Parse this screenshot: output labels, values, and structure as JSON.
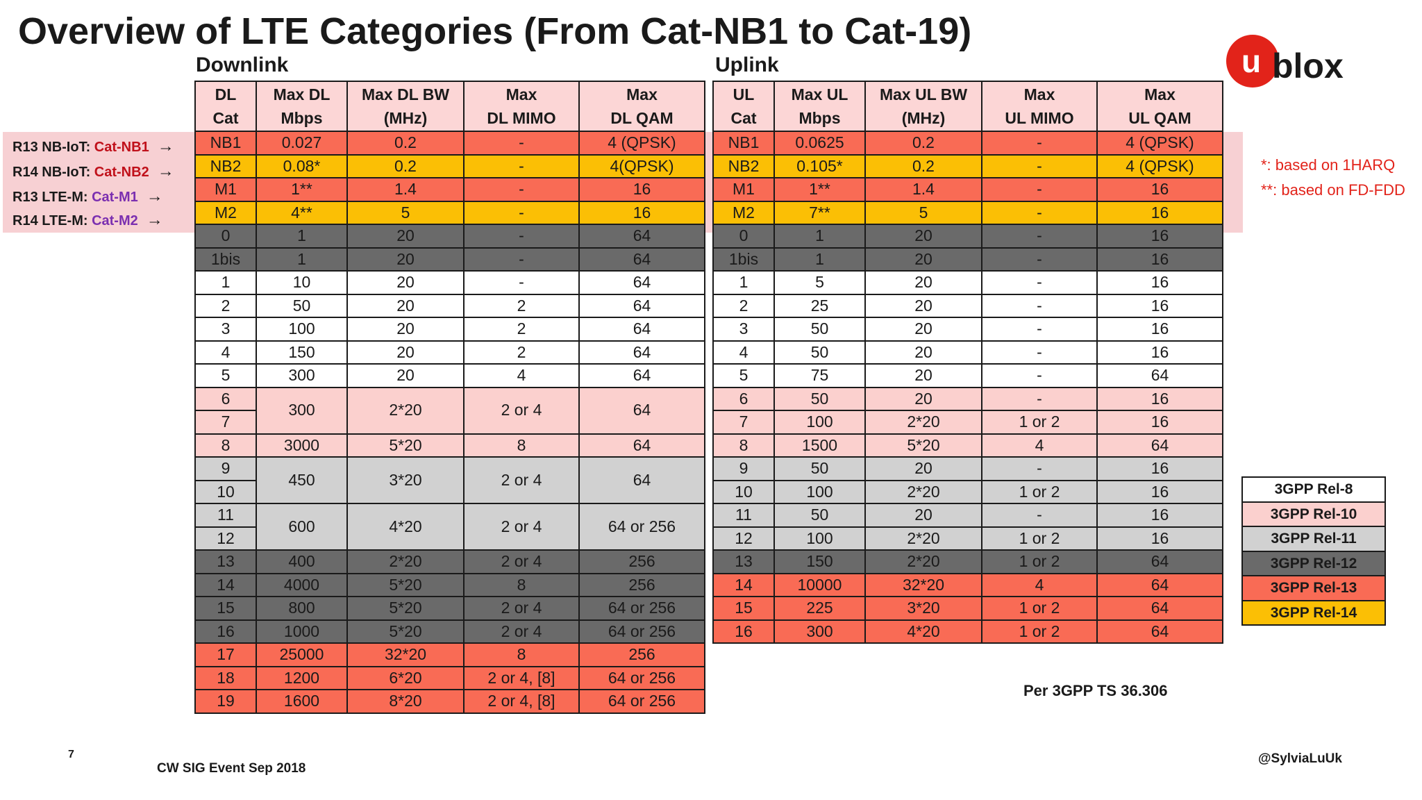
{
  "title": "Overview of LTE Categories (From Cat-NB1 to Cat-19)",
  "logo_text": "ublox",
  "colors": {
    "rel8": "#ffffff",
    "rel10": "#fbd0ce",
    "rel11": "#d1d1d1",
    "rel12": "#6a6a6a",
    "rel13": "#f96b55",
    "rel14": "#fbbf05",
    "logo_red": "#e2231a"
  },
  "downlink": {
    "heading": "Downlink",
    "headers": [
      [
        "DL",
        "Cat"
      ],
      [
        "Max DL",
        "Mbps"
      ],
      [
        "Max DL BW",
        "(MHz)"
      ],
      [
        "Max",
        "DL MIMO"
      ],
      [
        "Max",
        "DL QAM"
      ]
    ],
    "rows": {
      "nb1": [
        "NB1",
        "0.027",
        "0.2",
        "-",
        "4 (QPSK)"
      ],
      "nb2": [
        "NB2",
        "0.08*",
        "0.2",
        "-",
        "4(QPSK)"
      ],
      "m1": [
        "M1",
        "1**",
        "1.4",
        "-",
        "16"
      ],
      "m2": [
        "M2",
        "4**",
        "5",
        "-",
        "16"
      ],
      "c0": [
        "0",
        "1",
        "20",
        "-",
        "64"
      ],
      "c1bis": [
        "1bis",
        "1",
        "20",
        "-",
        "64"
      ],
      "c1": [
        "1",
        "10",
        "20",
        "-",
        "64"
      ],
      "c2": [
        "2",
        "50",
        "20",
        "2",
        "64"
      ],
      "c3": [
        "3",
        "100",
        "20",
        "2",
        "64"
      ],
      "c4": [
        "4",
        "150",
        "20",
        "2",
        "64"
      ],
      "c5": [
        "5",
        "300",
        "20",
        "4",
        "64"
      ],
      "c6": [
        "6",
        "300",
        "2*20",
        "2 or 4",
        "64"
      ],
      "c7": [
        "7"
      ],
      "c8": [
        "8",
        "3000",
        "5*20",
        "8",
        "64"
      ],
      "c9": [
        "9",
        "450",
        "3*20",
        "2 or 4",
        "64"
      ],
      "c10": [
        "10"
      ],
      "c11": [
        "11",
        "600",
        "4*20",
        "2 or 4",
        "64 or 256"
      ],
      "c12": [
        "12"
      ],
      "c13": [
        "13",
        "400",
        "2*20",
        "2 or 4",
        "256"
      ],
      "c14": [
        "14",
        "4000",
        "5*20",
        "8",
        "256"
      ],
      "c15": [
        "15",
        "800",
        "5*20",
        "2 or 4",
        "64 or 256"
      ],
      "c16": [
        "16",
        "1000",
        "5*20",
        "2 or 4",
        "64 or 256"
      ],
      "c17": [
        "17",
        "25000",
        "32*20",
        "8",
        "256"
      ],
      "c18": [
        "18",
        "1200",
        "6*20",
        "2 or 4, [8]",
        "64 or 256"
      ],
      "c19": [
        "19",
        "1600",
        "8*20",
        "2 or 4, [8]",
        "64 or 256"
      ]
    }
  },
  "uplink": {
    "heading": "Uplink",
    "headers": [
      [
        "UL",
        "Cat"
      ],
      [
        "Max UL",
        "Mbps"
      ],
      [
        "Max UL BW",
        "(MHz)"
      ],
      [
        "Max",
        "UL MIMO"
      ],
      [
        "Max",
        "UL QAM"
      ]
    ],
    "rows": {
      "nb1": [
        "NB1",
        "0.0625",
        "0.2",
        "-",
        "4 (QPSK)"
      ],
      "nb2": [
        "NB2",
        "0.105*",
        "0.2",
        "-",
        "4 (QPSK)"
      ],
      "m1": [
        "M1",
        "1**",
        "1.4",
        "-",
        "16"
      ],
      "m2": [
        "M2",
        "7**",
        "5",
        "-",
        "16"
      ],
      "c0": [
        "0",
        "1",
        "20",
        "-",
        "16"
      ],
      "c1bis": [
        "1bis",
        "1",
        "20",
        "-",
        "16"
      ],
      "c1": [
        "1",
        "5",
        "20",
        "-",
        "16"
      ],
      "c2": [
        "2",
        "25",
        "20",
        "-",
        "16"
      ],
      "c3": [
        "3",
        "50",
        "20",
        "-",
        "16"
      ],
      "c4": [
        "4",
        "50",
        "20",
        "-",
        "16"
      ],
      "c5": [
        "5",
        "75",
        "20",
        "-",
        "64"
      ],
      "c6": [
        "6",
        "50",
        "20",
        "-",
        "16"
      ],
      "c7": [
        "7",
        "100",
        "2*20",
        "1 or 2",
        "16"
      ],
      "c8": [
        "8",
        "1500",
        "5*20",
        "4",
        "64"
      ],
      "c9": [
        "9",
        "50",
        "20",
        "-",
        "16"
      ],
      "c10": [
        "10",
        "100",
        "2*20",
        "1 or 2",
        "16"
      ],
      "c11": [
        "11",
        "50",
        "20",
        "-",
        "16"
      ],
      "c12": [
        "12",
        "100",
        "2*20",
        "1 or 2",
        "16"
      ],
      "c13": [
        "13",
        "150",
        "2*20",
        "1 or 2",
        "64"
      ],
      "c14": [
        "14",
        "10000",
        "32*20",
        "4",
        "64"
      ],
      "c15": [
        "15",
        "225",
        "3*20",
        "1 or 2",
        "64"
      ],
      "c16": [
        "16",
        "300",
        "4*20",
        "1 or 2",
        "64"
      ]
    }
  },
  "side_labels": [
    {
      "prefix": "R13 NB-IoT: ",
      "cat": "Cat-NB1"
    },
    {
      "prefix": "R14 NB-IoT: ",
      "cat": "Cat-NB2"
    },
    {
      "prefix": "R13 LTE-M: ",
      "cat": "Cat-M1"
    },
    {
      "prefix": "R14 LTE-M: ",
      "cat": "Cat-M2"
    }
  ],
  "notes": [
    "*: based on 1HARQ",
    "**: based on FD-FDD"
  ],
  "legend": [
    "3GPP Rel-8",
    "3GPP Rel-10",
    "3GPP Rel-11",
    "3GPP Rel-12",
    "3GPP Rel-13",
    "3GPP Rel-14"
  ],
  "source": "Per 3GPP TS 36.306",
  "page_number": "7",
  "event": "CW SIG Event Sep 2018",
  "handle": "@SylviaLuUk"
}
